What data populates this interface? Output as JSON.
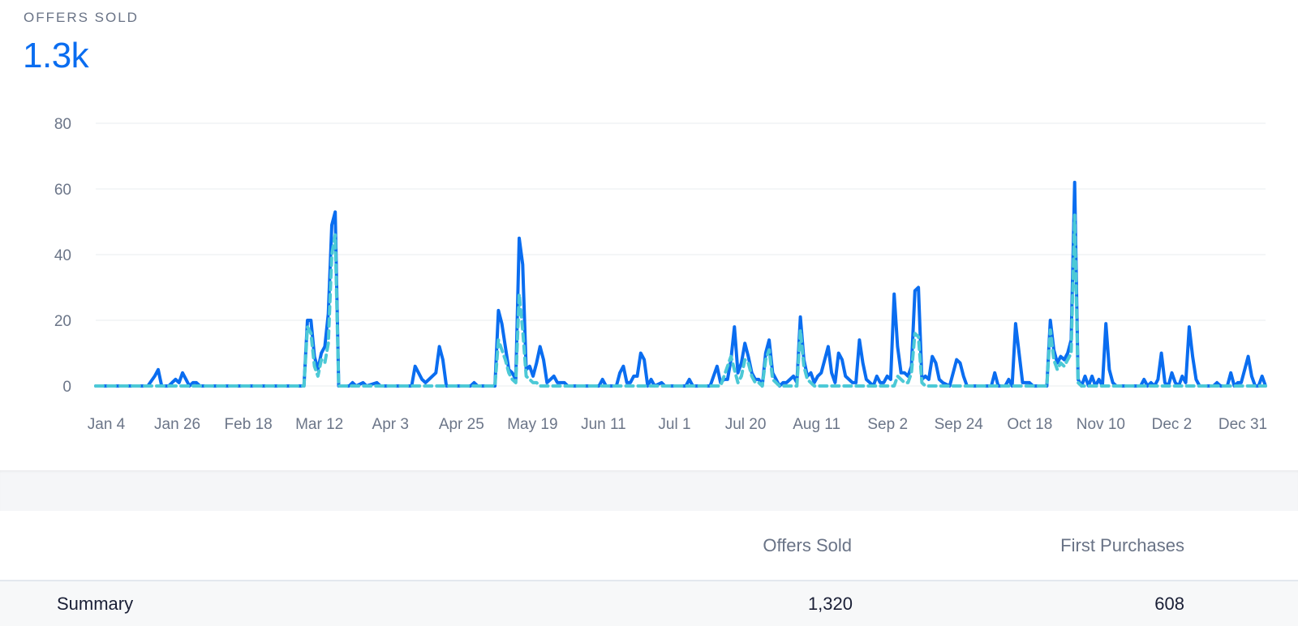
{
  "metric": {
    "label": "OFFERS SOLD",
    "value": "1.3k"
  },
  "colors": {
    "primary": "#0a6df0",
    "secondary": "#4cc9d6",
    "grid": "#e9ecef",
    "axis_text": "#6b7588"
  },
  "chart_data": {
    "type": "line",
    "x_start": "Jan 4",
    "x_end": "Dec 31",
    "x_tick_labels": [
      "Jan 4",
      "Jan 26",
      "Feb 18",
      "Mar 12",
      "Apr 3",
      "Apr 25",
      "May 19",
      "Jun 11",
      "Jul 1",
      "Jul 20",
      "Aug 11",
      "Sep 2",
      "Sep 24",
      "Oct 18",
      "Nov 10",
      "Dec 2",
      "Dec 31"
    ],
    "y_tick_labels": [
      "0",
      "20",
      "40",
      "60",
      "80"
    ],
    "ylim": [
      0,
      80
    ],
    "grid": true,
    "series": [
      {
        "name": "Offers Sold",
        "style": "solid",
        "points": [
          [
            0,
            0
          ],
          [
            15,
            0
          ],
          [
            17,
            3
          ],
          [
            18,
            5
          ],
          [
            19,
            0
          ],
          [
            21,
            0
          ],
          [
            22,
            1
          ],
          [
            23,
            2
          ],
          [
            24,
            1
          ],
          [
            25,
            4
          ],
          [
            26,
            2
          ],
          [
            27,
            0
          ],
          [
            28,
            1
          ],
          [
            29,
            1
          ],
          [
            30,
            0
          ],
          [
            60,
            0
          ],
          [
            61,
            20
          ],
          [
            62,
            20
          ],
          [
            63,
            9
          ],
          [
            64,
            5
          ],
          [
            65,
            10
          ],
          [
            66,
            12
          ],
          [
            67,
            22
          ],
          [
            68,
            49
          ],
          [
            69,
            53
          ],
          [
            70,
            0
          ],
          [
            73,
            0
          ],
          [
            74,
            1
          ],
          [
            75,
            0
          ],
          [
            77,
            1
          ],
          [
            78,
            0
          ],
          [
            81,
            1
          ],
          [
            82,
            0
          ],
          [
            91,
            0
          ],
          [
            92,
            6
          ],
          [
            94,
            2
          ],
          [
            95,
            1
          ],
          [
            96,
            2
          ],
          [
            98,
            4
          ],
          [
            99,
            12
          ],
          [
            100,
            8
          ],
          [
            101,
            0
          ],
          [
            108,
            0
          ],
          [
            109,
            1
          ],
          [
            110,
            0
          ],
          [
            115,
            0
          ],
          [
            116,
            23
          ],
          [
            117,
            19
          ],
          [
            118,
            12
          ],
          [
            119,
            5
          ],
          [
            120,
            4
          ],
          [
            121,
            2
          ],
          [
            122,
            45
          ],
          [
            123,
            37
          ],
          [
            124,
            5
          ],
          [
            125,
            6
          ],
          [
            126,
            3
          ],
          [
            127,
            7
          ],
          [
            128,
            12
          ],
          [
            129,
            8
          ],
          [
            130,
            1
          ],
          [
            131,
            2
          ],
          [
            132,
            3
          ],
          [
            133,
            1
          ],
          [
            135,
            1
          ],
          [
            136,
            0
          ],
          [
            145,
            0
          ],
          [
            146,
            2
          ],
          [
            147,
            0
          ],
          [
            150,
            0
          ],
          [
            151,
            4
          ],
          [
            152,
            6
          ],
          [
            153,
            1
          ],
          [
            154,
            1
          ],
          [
            155,
            3
          ],
          [
            156,
            3
          ],
          [
            157,
            10
          ],
          [
            158,
            8
          ],
          [
            159,
            0
          ],
          [
            160,
            2
          ],
          [
            161,
            0
          ],
          [
            163,
            1
          ],
          [
            164,
            0
          ],
          [
            170,
            0
          ],
          [
            171,
            2
          ],
          [
            172,
            0
          ],
          [
            177,
            0
          ],
          [
            178,
            3
          ],
          [
            179,
            6
          ],
          [
            180,
            1
          ],
          [
            181,
            2
          ],
          [
            182,
            2
          ],
          [
            183,
            8
          ],
          [
            184,
            18
          ],
          [
            185,
            4
          ],
          [
            186,
            7
          ],
          [
            187,
            13
          ],
          [
            188,
            9
          ],
          [
            189,
            4
          ],
          [
            190,
            2
          ],
          [
            191,
            2
          ],
          [
            192,
            0
          ],
          [
            193,
            10
          ],
          [
            194,
            14
          ],
          [
            195,
            4
          ],
          [
            196,
            2
          ],
          [
            197,
            0
          ],
          [
            198,
            1
          ],
          [
            199,
            1
          ],
          [
            200,
            2
          ],
          [
            201,
            3
          ],
          [
            202,
            1
          ],
          [
            203,
            21
          ],
          [
            204,
            8
          ],
          [
            205,
            3
          ],
          [
            206,
            4
          ],
          [
            207,
            1
          ],
          [
            208,
            3
          ],
          [
            209,
            4
          ],
          [
            210,
            8
          ],
          [
            211,
            12
          ],
          [
            212,
            4
          ],
          [
            213,
            1
          ],
          [
            214,
            10
          ],
          [
            215,
            8
          ],
          [
            216,
            3
          ],
          [
            217,
            2
          ],
          [
            218,
            1
          ],
          [
            219,
            1
          ],
          [
            220,
            14
          ],
          [
            221,
            7
          ],
          [
            222,
            2
          ],
          [
            223,
            1
          ],
          [
            224,
            0
          ],
          [
            225,
            3
          ],
          [
            226,
            1
          ],
          [
            227,
            1
          ],
          [
            228,
            3
          ],
          [
            229,
            2
          ],
          [
            230,
            28
          ],
          [
            231,
            12
          ],
          [
            232,
            4
          ],
          [
            233,
            4
          ],
          [
            234,
            3
          ],
          [
            235,
            6
          ],
          [
            236,
            29
          ],
          [
            237,
            30
          ],
          [
            238,
            2
          ],
          [
            239,
            3
          ],
          [
            240,
            2
          ],
          [
            241,
            9
          ],
          [
            242,
            7
          ],
          [
            243,
            2
          ],
          [
            244,
            1
          ],
          [
            246,
            0
          ],
          [
            248,
            8
          ],
          [
            249,
            7
          ],
          [
            250,
            3
          ],
          [
            251,
            0
          ],
          [
            258,
            0
          ],
          [
            259,
            4
          ],
          [
            260,
            0
          ],
          [
            262,
            0
          ],
          [
            263,
            2
          ],
          [
            264,
            0
          ],
          [
            265,
            19
          ],
          [
            266,
            10
          ],
          [
            267,
            1
          ],
          [
            268,
            1
          ],
          [
            269,
            1
          ],
          [
            270,
            0
          ],
          [
            274,
            0
          ],
          [
            275,
            20
          ],
          [
            276,
            11
          ],
          [
            277,
            7
          ],
          [
            278,
            9
          ],
          [
            279,
            8
          ],
          [
            280,
            10
          ],
          [
            281,
            14
          ],
          [
            282,
            62
          ],
          [
            283,
            2
          ],
          [
            284,
            0
          ],
          [
            285,
            3
          ],
          [
            286,
            0
          ],
          [
            287,
            3
          ],
          [
            288,
            0
          ],
          [
            289,
            2
          ],
          [
            290,
            0
          ],
          [
            291,
            19
          ],
          [
            292,
            5
          ],
          [
            293,
            1
          ],
          [
            294,
            0
          ],
          [
            301,
            0
          ],
          [
            302,
            2
          ],
          [
            303,
            0
          ],
          [
            304,
            1
          ],
          [
            305,
            0
          ],
          [
            306,
            2
          ],
          [
            307,
            10
          ],
          [
            308,
            1
          ],
          [
            309,
            0
          ],
          [
            310,
            4
          ],
          [
            311,
            1
          ],
          [
            312,
            0
          ],
          [
            313,
            3
          ],
          [
            314,
            1
          ],
          [
            315,
            18
          ],
          [
            316,
            9
          ],
          [
            317,
            2
          ],
          [
            318,
            0
          ],
          [
            322,
            0
          ],
          [
            323,
            1
          ],
          [
            324,
            0
          ],
          [
            326,
            0
          ],
          [
            327,
            4
          ],
          [
            328,
            0
          ],
          [
            329,
            1
          ],
          [
            330,
            1
          ],
          [
            331,
            5
          ],
          [
            332,
            9
          ],
          [
            333,
            3
          ],
          [
            334,
            0
          ],
          [
            335,
            0
          ],
          [
            336,
            3
          ],
          [
            337,
            0
          ]
        ]
      },
      {
        "name": "First Purchases",
        "style": "dashed",
        "points": [
          [
            0,
            0
          ],
          [
            60,
            0
          ],
          [
            61,
            18
          ],
          [
            62,
            16
          ],
          [
            63,
            6
          ],
          [
            64,
            3
          ],
          [
            65,
            8
          ],
          [
            66,
            7
          ],
          [
            67,
            13
          ],
          [
            68,
            40
          ],
          [
            69,
            46
          ],
          [
            70,
            0
          ],
          [
            115,
            0
          ],
          [
            116,
            14
          ],
          [
            117,
            11
          ],
          [
            118,
            8
          ],
          [
            119,
            4
          ],
          [
            120,
            2
          ],
          [
            121,
            1
          ],
          [
            122,
            28
          ],
          [
            123,
            17
          ],
          [
            124,
            3
          ],
          [
            125,
            2
          ],
          [
            126,
            1
          ],
          [
            127,
            1
          ],
          [
            128,
            0
          ],
          [
            180,
            0
          ],
          [
            181,
            3
          ],
          [
            182,
            6
          ],
          [
            183,
            9
          ],
          [
            184,
            5
          ],
          [
            185,
            1
          ],
          [
            186,
            3
          ],
          [
            187,
            8
          ],
          [
            188,
            7
          ],
          [
            189,
            3
          ],
          [
            190,
            1
          ],
          [
            191,
            1
          ],
          [
            192,
            0
          ],
          [
            193,
            8
          ],
          [
            194,
            11
          ],
          [
            195,
            2
          ],
          [
            196,
            1
          ],
          [
            197,
            0
          ],
          [
            202,
            0
          ],
          [
            203,
            17
          ],
          [
            204,
            6
          ],
          [
            205,
            2
          ],
          [
            206,
            1
          ],
          [
            207,
            0
          ],
          [
            230,
            0
          ],
          [
            231,
            3
          ],
          [
            232,
            2
          ],
          [
            233,
            1
          ],
          [
            234,
            1
          ],
          [
            235,
            4
          ],
          [
            236,
            16
          ],
          [
            237,
            15
          ],
          [
            238,
            1
          ],
          [
            239,
            0
          ],
          [
            274,
            0
          ],
          [
            275,
            17
          ],
          [
            276,
            8
          ],
          [
            277,
            5
          ],
          [
            278,
            7
          ],
          [
            279,
            6
          ],
          [
            280,
            8
          ],
          [
            281,
            10
          ],
          [
            282,
            52
          ],
          [
            283,
            1
          ],
          [
            284,
            0
          ],
          [
            337,
            0
          ]
        ]
      }
    ]
  },
  "table": {
    "headers": {
      "label": "",
      "offers_sold": "Offers Sold",
      "first_purchases": "First Purchases"
    },
    "rows": [
      {
        "label": "Summary",
        "offers_sold": "1,320",
        "first_purchases": "608"
      }
    ]
  }
}
